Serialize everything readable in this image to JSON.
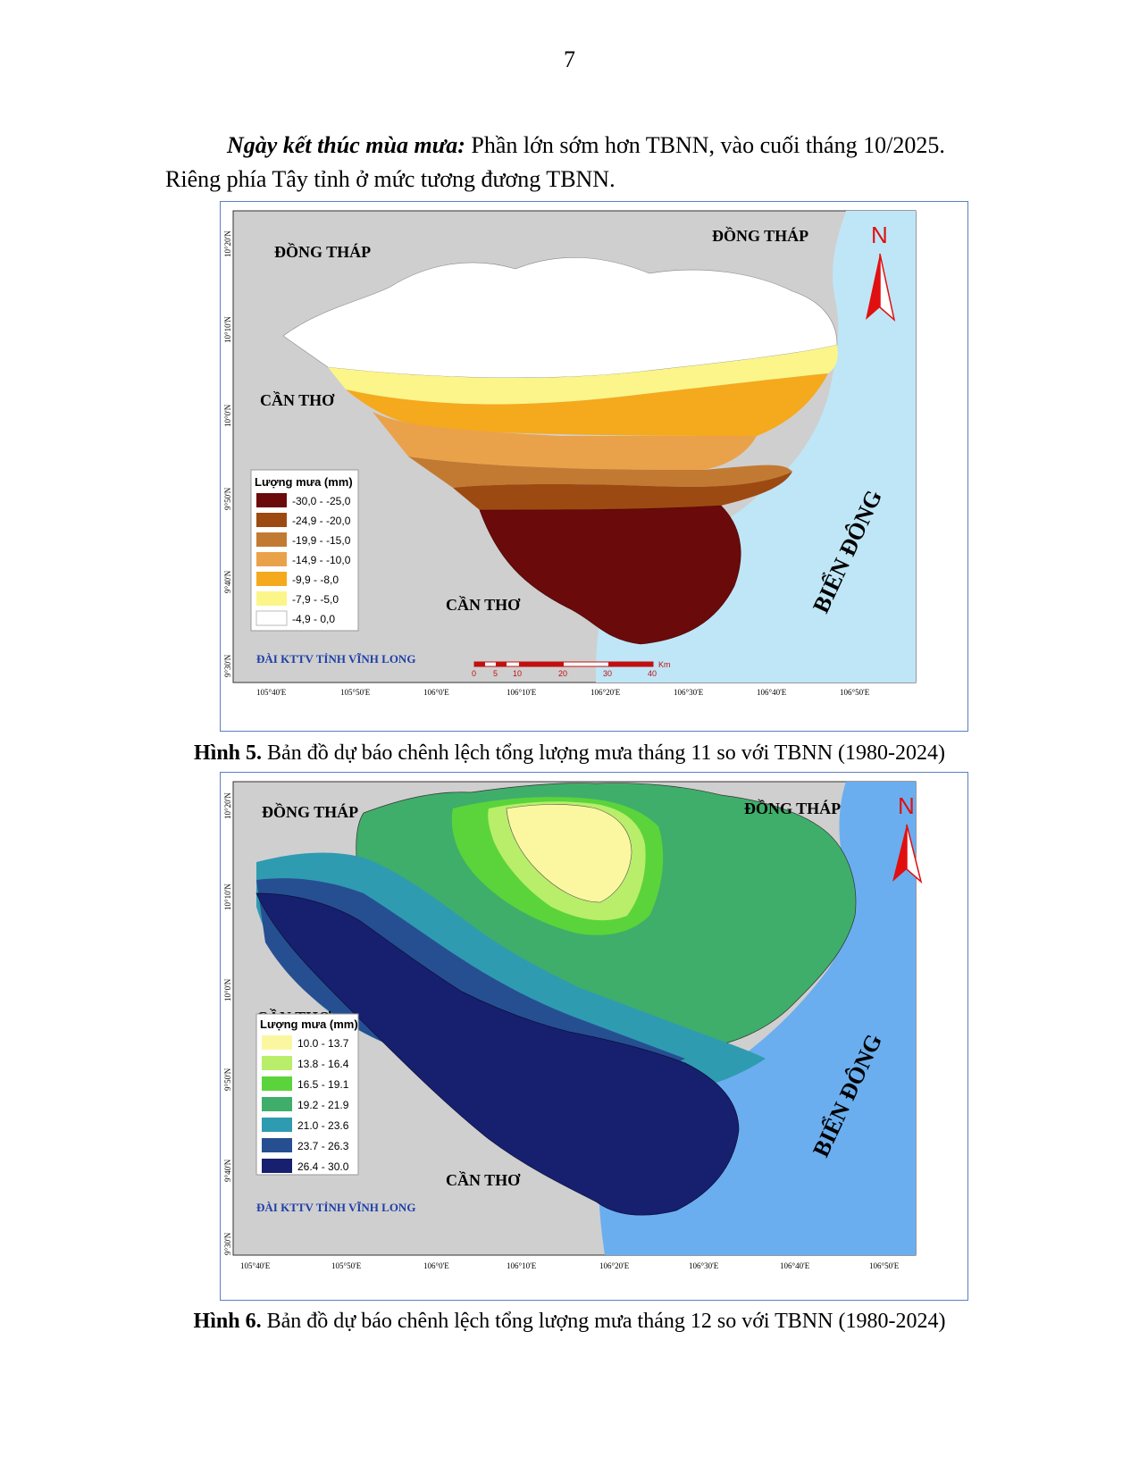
{
  "page_number": "7",
  "paragraph": {
    "lead": "Ngày kết thúc mùa mưa:",
    "line1_rest": " Phần lớn sớm hơn TBNN, vào cuối tháng 10/2025.",
    "line2": "Riêng phía Tây tỉnh ở mức tương đương TBNN."
  },
  "figure5": {
    "caption_label": "Hình 5.",
    "caption_text": " Bản đồ dự báo chênh lệch tổng lượng mưa tháng 11 so với TBNN (1980-2024)",
    "regions": {
      "dong_thap_left": "ĐỒNG THÁP",
      "dong_thap_right": "ĐỒNG THÁP",
      "can_tho_upper": "CẦN THƠ",
      "can_tho_lower": "CẦN THƠ",
      "bien_dong": "BIỂN ĐÔNG"
    },
    "north_label": "N",
    "legend_title": "Lượng mưa (mm)",
    "legend": [
      {
        "label": "-30,0 - -25,0",
        "color": "#6b0a0a"
      },
      {
        "label": "-24,9 - -20,0",
        "color": "#9c4a12"
      },
      {
        "label": "-19,9 - -15,0",
        "color": "#c27a32"
      },
      {
        "label": "-14,9 - -10,0",
        "color": "#eaa24a"
      },
      {
        "label": "-9,9 - -8,0",
        "color": "#f5a91c"
      },
      {
        "label": "-7,9 - -5,0",
        "color": "#fbf58a"
      },
      {
        "label": "-4,9 - 0,0",
        "color": "#ffffff"
      }
    ],
    "credit": "ĐÀI KTTV TỈNH VĨNH LONG",
    "scale_labels": [
      "0",
      "5",
      "10",
      "20",
      "30",
      "40"
    ],
    "scale_unit": "Km",
    "lon_ticks": [
      "105°40'E",
      "105°50'E",
      "106°0'E",
      "106°10'E",
      "106°20'E",
      "106°30'E",
      "106°40'E",
      "106°50'E"
    ],
    "lat_ticks": [
      "10°20'N",
      "10°10'N",
      "10°0'N",
      "9°50'N",
      "9°40'N",
      "9°30'N"
    ]
  },
  "figure6": {
    "caption_label": "Hình 6.",
    "caption_text": " Bản đồ dự báo chênh lệch tổng lượng mưa tháng 12 so với TBNN (1980-2024)",
    "regions": {
      "dong_thap_left": "ĐỒNG THÁP",
      "dong_thap_right": "ĐỒNG THÁP",
      "can_tho_upper": "CẦN THƠ",
      "can_tho_lower": "CẦN THƠ",
      "bien_dong": "BIỂN ĐÔNG"
    },
    "north_label": "N",
    "legend_title": "Lượng mưa (mm)",
    "legend": [
      {
        "label": "10.0 - 13.7",
        "color": "#fbf7a0"
      },
      {
        "label": "13.8 - 16.4",
        "color": "#b8ee6a"
      },
      {
        "label": "16.5 - 19.1",
        "color": "#5ad43a"
      },
      {
        "label": "19.2 - 21.9",
        "color": "#3fae6a"
      },
      {
        "label": "21.0 - 23.6",
        "color": "#2f9bb0"
      },
      {
        "label": "23.7 - 26.3",
        "color": "#264f92"
      },
      {
        "label": "26.4 - 30.0",
        "color": "#17206e"
      }
    ],
    "credit": "ĐÀI KTTV TỈNH VĨNH LONG",
    "lon_ticks": [
      "105°40'E",
      "105°50'E",
      "106°0'E",
      "106°10'E",
      "106°20'E",
      "106°30'E",
      "106°40'E",
      "106°50'E"
    ],
    "lat_ticks": [
      "10°20'N",
      "10°10'N",
      "10°0'N",
      "9°50'N",
      "9°40'N",
      "9°30'N"
    ]
  },
  "colors": {
    "land_gray": "#cfcfcf",
    "sea_blue_5": "#bfe6f7",
    "sea_blue_6": "#6aaef0",
    "credit_blue": "#1f3fa8",
    "north_red": "#e01010"
  }
}
